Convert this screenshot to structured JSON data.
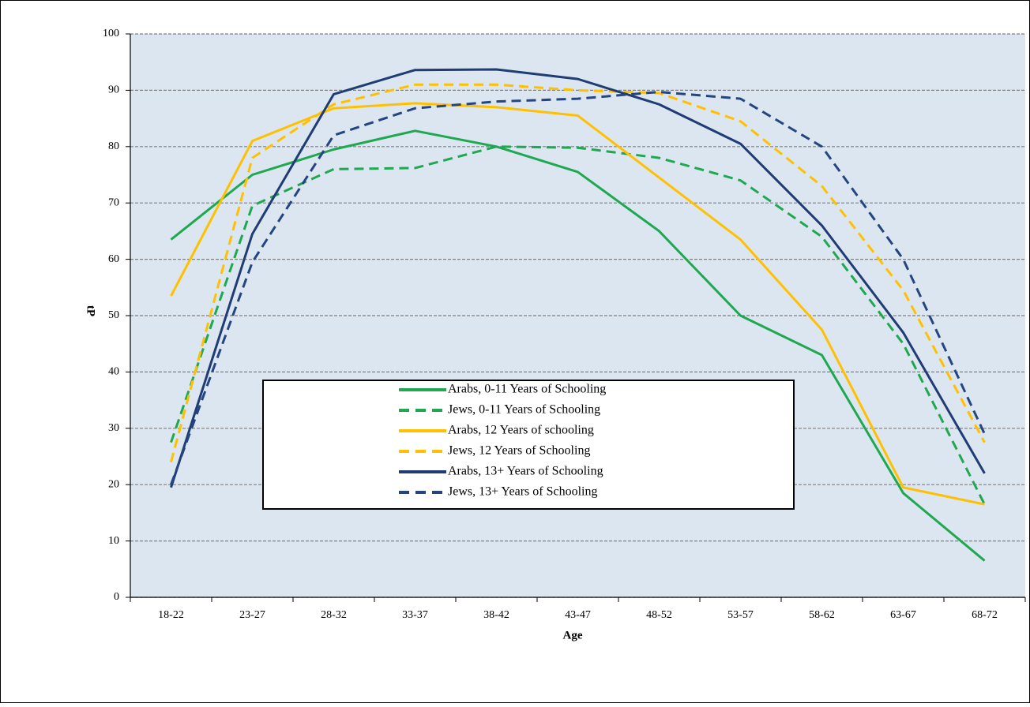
{
  "chart_data": {
    "type": "line",
    "x_label": "Age",
    "y_label": "tP",
    "categories": [
      "18-22",
      "23-27",
      "28-32",
      "33-37",
      "38-42",
      "43-47",
      "48-52",
      "53-57",
      "58-62",
      "63-67",
      "68-72"
    ],
    "ylim": [
      0,
      100
    ],
    "yticks": [
      0,
      10,
      20,
      30,
      40,
      50,
      60,
      70,
      80,
      90,
      100
    ],
    "grid": true,
    "series": [
      {
        "name": "Arabs, 0-11 Years of Schooling",
        "color": "#1fa84f",
        "dashed": false,
        "values": [
          63.5,
          75,
          79.5,
          82.8,
          80,
          75.5,
          65,
          50,
          43,
          18.5,
          6.5
        ]
      },
      {
        "name": "Jews, 0-11 Years of Schooling",
        "color": "#1fa84f",
        "dashed": true,
        "values": [
          27.5,
          69.5,
          76,
          76.2,
          80,
          79.8,
          78,
          74,
          64,
          45,
          16.5
        ]
      },
      {
        "name": "Arabs, 12 Years of schooling",
        "color": "#ffc000",
        "dashed": false,
        "values": [
          53.5,
          81,
          86.8,
          87.7,
          87,
          85.5,
          74.5,
          63.5,
          47.5,
          19.5,
          16.5
        ]
      },
      {
        "name": "Jews, 12 Years of Schooling",
        "color": "#ffc000",
        "dashed": true,
        "values": [
          24,
          78,
          87.5,
          91,
          91,
          90,
          89.5,
          84.5,
          73,
          54.5,
          27.5
        ]
      },
      {
        "name": "Arabs, 13+ Years of Schooling",
        "color": "#1f3c74",
        "dashed": false,
        "values": [
          19.5,
          64.5,
          89.3,
          93.6,
          93.7,
          92,
          87.5,
          80.5,
          66,
          47,
          22
        ]
      },
      {
        "name": "Jews, 13+ Years of Schooling",
        "color": "#24457f",
        "dashed": true,
        "values": [
          20,
          59.5,
          82,
          86.8,
          88,
          88.5,
          89.7,
          88.5,
          80,
          60,
          29
        ]
      }
    ]
  }
}
